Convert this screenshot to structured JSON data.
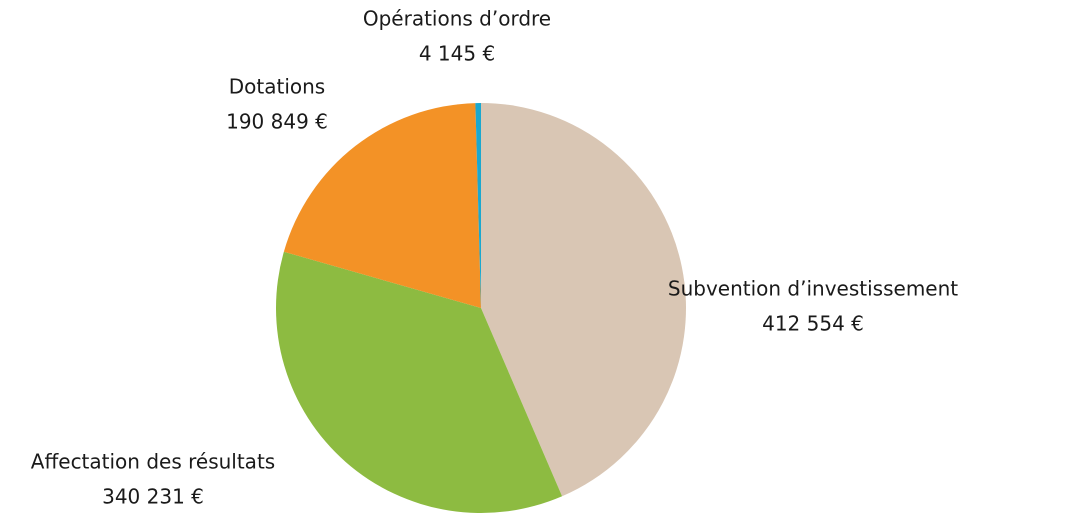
{
  "chart_data": {
    "type": "pie",
    "categories": [
      "Subvention d’investissement",
      "Affectation des résultats",
      "Dotations",
      "Opérations d’ordre"
    ],
    "values": [
      412554,
      340231,
      190849,
      4145
    ],
    "value_labels": [
      "412 554 €",
      "340 231 €",
      "190 849 €",
      "4 145 €"
    ],
    "colors": [
      "#d9c6b4",
      "#8dbb41",
      "#f39226",
      "#1ba8cf"
    ]
  }
}
